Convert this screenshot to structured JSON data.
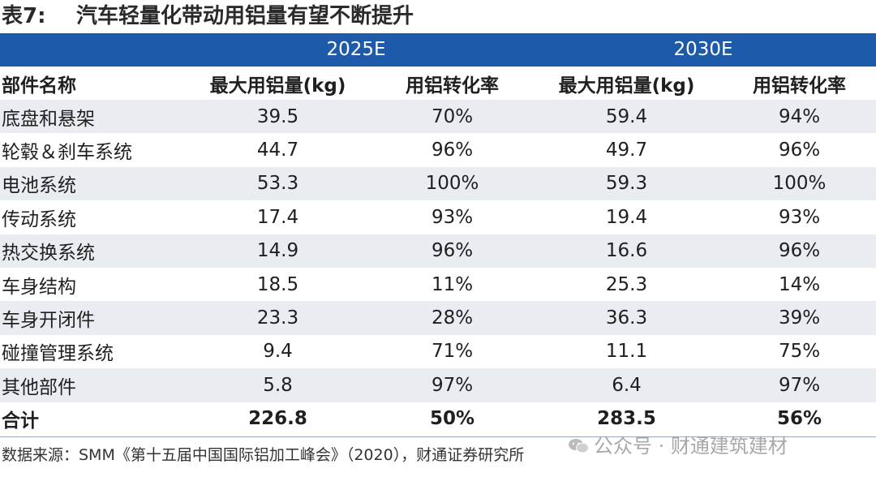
{
  "title": {
    "label": "表7:",
    "text": "汽车轻量化带动用铝量有望不断提升"
  },
  "years": [
    "2025E",
    "2030E"
  ],
  "header": [
    "部件名称",
    "最大用铝量(kg)",
    "用铝转化率",
    "最大用铝量(kg)",
    "用铝转化率"
  ],
  "rows": [
    [
      "底盘和悬架",
      "39.5",
      "70%",
      "59.4",
      "94%"
    ],
    [
      "轮毂＆刹车系统",
      "44.7",
      "96%",
      "49.7",
      "96%"
    ],
    [
      "电池系统",
      "53.3",
      "100%",
      "59.3",
      "100%"
    ],
    [
      "传动系统",
      "17.4",
      "93%",
      "19.4",
      "93%"
    ],
    [
      "热交换系统",
      "14.9",
      "96%",
      "16.6",
      "96%"
    ],
    [
      "车身结构",
      "18.5",
      "11%",
      "25.3",
      "14%"
    ],
    [
      "车身开闭件",
      "23.3",
      "28%",
      "36.3",
      "39%"
    ],
    [
      "碰撞管理系统",
      "9.4",
      "71%",
      "11.1",
      "75%"
    ],
    [
      "其他部件",
      "5.8",
      "97%",
      "6.4",
      "97%"
    ]
  ],
  "total": [
    "合计",
    "226.8",
    "50%",
    "283.5",
    "56%"
  ],
  "footer": "数据来源：SMM《第十五届中国国际铝加工峰会》（2020），财通证券研究所",
  "watermark": "公众号 · 财通建筑建材",
  "colors": {
    "header_band": "#1d5aa9",
    "row_shade": "#e9ecf1"
  }
}
